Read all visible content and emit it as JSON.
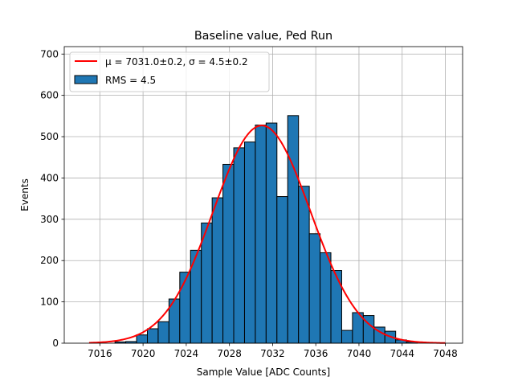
{
  "chart_data": {
    "type": "bar",
    "title": "Baseline value, Ped Run",
    "xlabel": "Sample Value [ADC Counts]",
    "ylabel": "Events",
    "xlim": [
      7012.7,
      7049.6
    ],
    "ylim": [
      0,
      718
    ],
    "xticks": [
      7016,
      7020,
      7024,
      7028,
      7032,
      7036,
      7040,
      7044,
      7048
    ],
    "yticks": [
      0,
      100,
      200,
      300,
      400,
      500,
      600,
      700
    ],
    "grid": true,
    "legend_placement": "top-left",
    "bin_width": 1.0,
    "bin_left_edges": [
      7017.4,
      7018.4,
      7019.4,
      7020.4,
      7021.4,
      7022.4,
      7023.4,
      7024.4,
      7025.4,
      7026.4,
      7027.4,
      7028.4,
      7029.4,
      7030.4,
      7031.4,
      7032.4,
      7033.4,
      7034.4,
      7035.4,
      7036.4,
      7037.4,
      7038.4,
      7039.4,
      7040.4,
      7041.4,
      7042.4,
      7043.4,
      7044.4
    ],
    "values": [
      3,
      4,
      20,
      35,
      52,
      107,
      172,
      225,
      291,
      352,
      433,
      473,
      487,
      528,
      533,
      355,
      551,
      380,
      265,
      219,
      176,
      31,
      74,
      67,
      39,
      29,
      8,
      3
    ],
    "bar_color": "#1f77b4",
    "fit": {
      "label": "μ = 7031.0±0.2, σ = 4.5±0.2",
      "mu": 7031.0,
      "sigma": 4.5,
      "amplitude": 527,
      "x_range": [
        7015,
        7048
      ],
      "color": "#ff0000"
    },
    "legend": [
      {
        "label": "μ = 7031.0±0.2, σ = 4.5±0.2",
        "kind": "line"
      },
      {
        "label": "RMS = 4.5",
        "kind": "patch"
      }
    ]
  }
}
